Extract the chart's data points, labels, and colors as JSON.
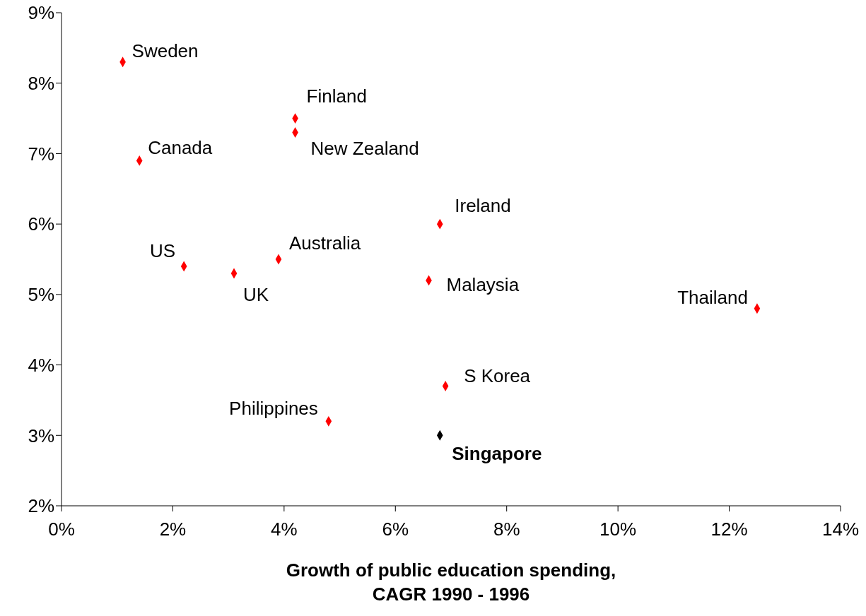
{
  "chart_data": {
    "type": "scatter",
    "xlabel": "Growth of public education spending,\nCAGR 1990 - 1996",
    "marker": "diamond",
    "grid": false,
    "legend": false,
    "xlim": [
      0,
      14
    ],
    "xticks": [
      {
        "value": 0,
        "label": "0%"
      },
      {
        "value": 2,
        "label": "2%"
      },
      {
        "value": 4,
        "label": "4%"
      },
      {
        "value": 6,
        "label": "6%"
      },
      {
        "value": 8,
        "label": "8%"
      },
      {
        "value": 10,
        "label": "10%"
      },
      {
        "value": 12,
        "label": "12%"
      },
      {
        "value": 14,
        "label": "14%"
      }
    ],
    "ylim": [
      2,
      9
    ],
    "yticks": [
      {
        "value": 2,
        "label": "2%"
      },
      {
        "value": 3,
        "label": "3%"
      },
      {
        "value": 4,
        "label": "4%"
      },
      {
        "value": 5,
        "label": "5%"
      },
      {
        "value": 6,
        "label": "6%"
      },
      {
        "value": 7,
        "label": "7%"
      },
      {
        "value": 8,
        "label": "8%"
      },
      {
        "value": 9,
        "label": "9%"
      }
    ],
    "series": [
      {
        "name": "Sweden",
        "color": "#ff0000",
        "x": [
          1.1
        ],
        "values": [
          8.3
        ]
      },
      {
        "name": "Canada",
        "color": "#ff0000",
        "x": [
          1.4
        ],
        "values": [
          6.9
        ]
      },
      {
        "name": "Finland",
        "color": "#ff0000",
        "x": [
          4.2
        ],
        "values": [
          7.5
        ]
      },
      {
        "name": "New Zealand",
        "color": "#ff0000",
        "x": [
          4.2
        ],
        "values": [
          7.3
        ]
      },
      {
        "name": "Ireland",
        "color": "#ff0000",
        "x": [
          6.8
        ],
        "values": [
          6.0
        ]
      },
      {
        "name": "US",
        "color": "#ff0000",
        "x": [
          2.2
        ],
        "values": [
          5.4
        ]
      },
      {
        "name": "UK",
        "color": "#ff0000",
        "x": [
          3.1
        ],
        "values": [
          5.3
        ]
      },
      {
        "name": "Australia",
        "color": "#ff0000",
        "x": [
          3.9
        ],
        "values": [
          5.5
        ]
      },
      {
        "name": "Malaysia",
        "color": "#ff0000",
        "x": [
          6.6
        ],
        "values": [
          5.2
        ]
      },
      {
        "name": "Thailand",
        "color": "#ff0000",
        "x": [
          12.5
        ],
        "values": [
          4.8
        ]
      },
      {
        "name": "S Korea",
        "color": "#ff0000",
        "x": [
          6.9
        ],
        "values": [
          3.7
        ]
      },
      {
        "name": "Philippines",
        "color": "#ff0000",
        "x": [
          4.8
        ],
        "values": [
          3.2
        ]
      },
      {
        "name": "Singapore",
        "color": "#000000",
        "x": [
          6.8
        ],
        "values": [
          3.0
        ]
      }
    ]
  }
}
